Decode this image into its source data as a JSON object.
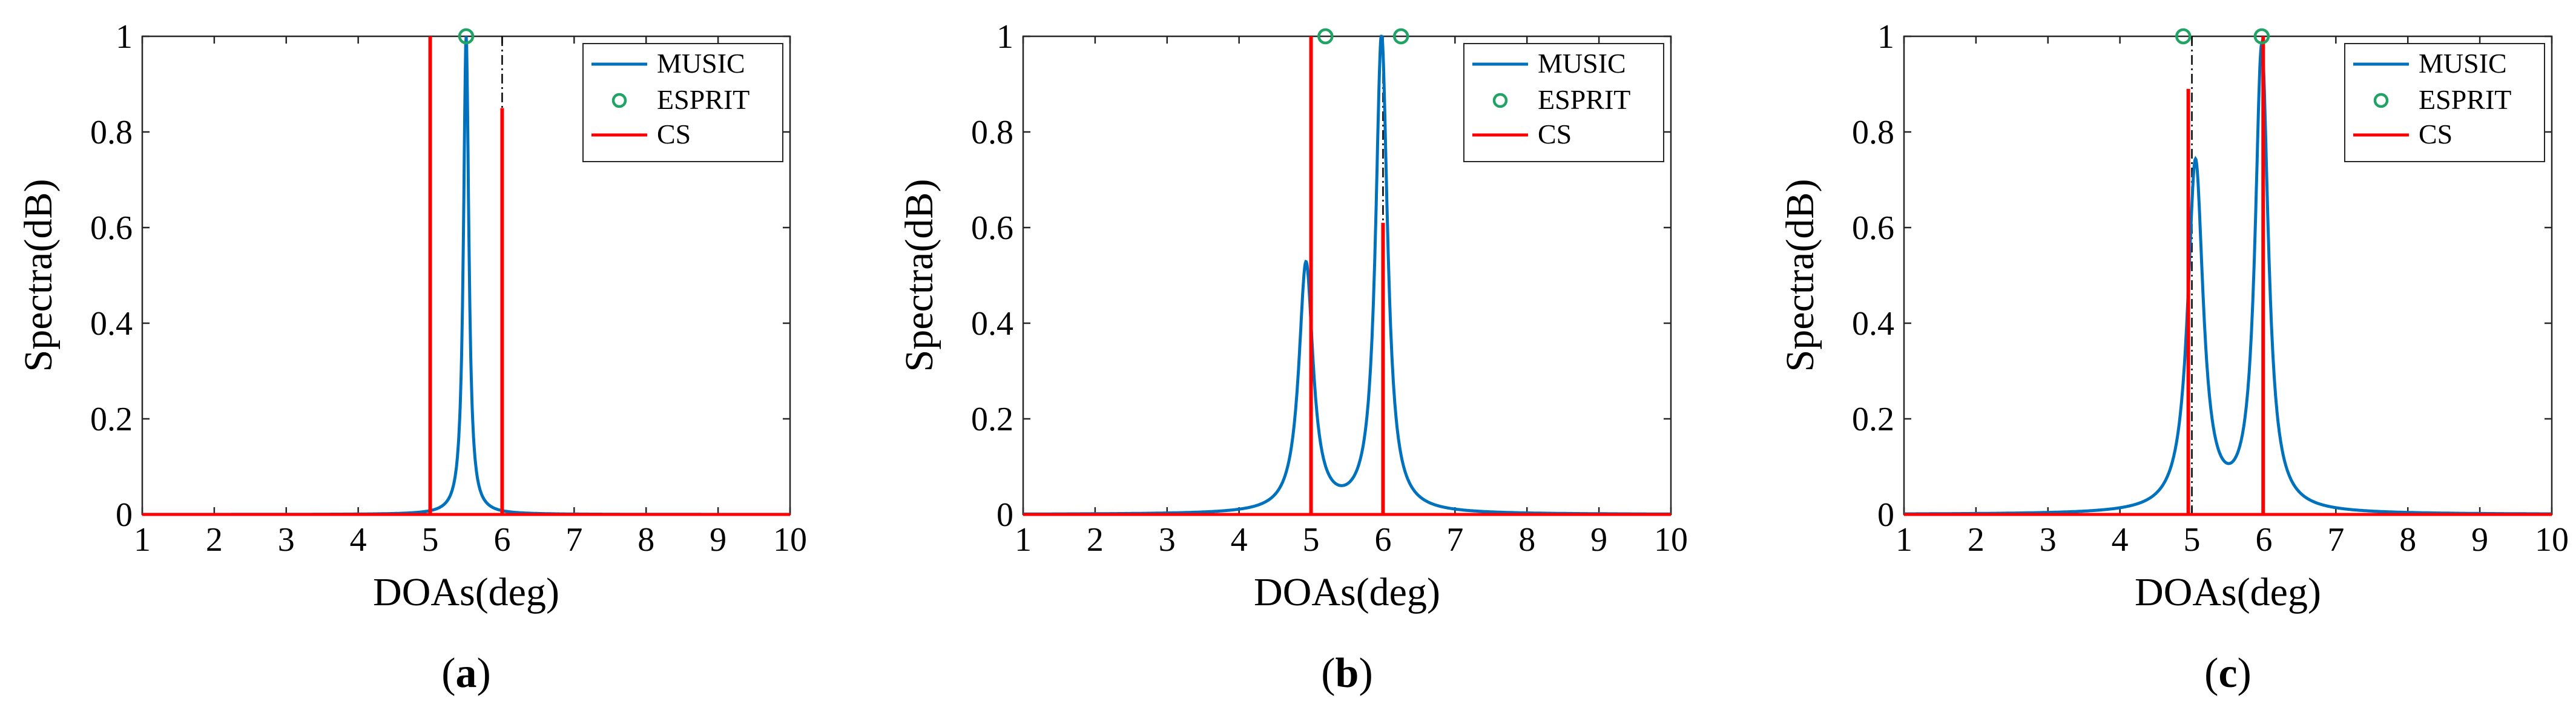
{
  "figure": {
    "panel_labels": [
      "a",
      "b",
      "c"
    ],
    "caption_open": "(",
    "caption_close": ")"
  },
  "style": {
    "music_color": "#0072BD",
    "esprit_color": "#21A366",
    "cs_color": "#FF0000",
    "true_doa_color": "#000000"
  },
  "chart_data": [
    {
      "type": "line",
      "panel": "a",
      "xlabel": "DOAs(deg)",
      "ylabel": "Spectra(dB)",
      "xlim": [
        1,
        10
      ],
      "ylim": [
        0,
        1
      ],
      "xticks": [
        "1",
        "2",
        "3",
        "4",
        "5",
        "6",
        "7",
        "8",
        "9",
        "10"
      ],
      "yticks": [
        "0",
        "0.2",
        "0.4",
        "0.6",
        "0.8",
        "1"
      ],
      "legend": [
        "MUSIC",
        "ESPRIT",
        "CS"
      ],
      "legend_position": "top-right",
      "true_doas": [
        5,
        6
      ],
      "music": {
        "name": "MUSIC",
        "peaks": [
          {
            "x": 5.5,
            "h": 1.0,
            "w": 0.045
          }
        ],
        "baseline": 0.0
      },
      "esprit": {
        "name": "ESPRIT",
        "x": [
          5.5
        ],
        "y": [
          1.0
        ]
      },
      "cs": {
        "name": "CS",
        "x": [
          5.0,
          6.0
        ],
        "y": [
          1.0,
          0.85
        ]
      }
    },
    {
      "type": "line",
      "panel": "b",
      "xlabel": "DOAs(deg)",
      "ylabel": "Spectra(dB)",
      "xlim": [
        1,
        10
      ],
      "ylim": [
        0,
        1
      ],
      "xticks": [
        "1",
        "2",
        "3",
        "4",
        "5",
        "6",
        "7",
        "8",
        "9",
        "10"
      ],
      "yticks": [
        "0",
        "0.2",
        "0.4",
        "0.6",
        "0.8",
        "1"
      ],
      "legend": [
        "MUSIC",
        "ESPRIT",
        "CS"
      ],
      "legend_position": "top-right",
      "true_doas": [
        5,
        6
      ],
      "music": {
        "name": "MUSIC",
        "peaks": [
          {
            "x": 4.93,
            "h": 0.52,
            "w": 0.12
          },
          {
            "x": 5.98,
            "h": 1.0,
            "w": 0.1
          }
        ],
        "baseline": 0.0
      },
      "esprit": {
        "name": "ESPRIT",
        "x": [
          5.2,
          6.25
        ],
        "y": [
          1.0,
          1.0
        ]
      },
      "cs": {
        "name": "CS",
        "x": [
          5.0,
          6.0
        ],
        "y": [
          1.0,
          0.61
        ]
      }
    },
    {
      "type": "line",
      "panel": "c",
      "xlabel": "DOAs(deg)",
      "ylabel": "Spectra(dB)",
      "xlim": [
        1,
        10
      ],
      "ylim": [
        0,
        1
      ],
      "xticks": [
        "1",
        "2",
        "3",
        "4",
        "5",
        "6",
        "7",
        "8",
        "9",
        "10"
      ],
      "yticks": [
        "0",
        "0.2",
        "0.4",
        "0.6",
        "0.8",
        "1"
      ],
      "legend": [
        "MUSIC",
        "ESPRIT",
        "CS"
      ],
      "legend_position": "top-right",
      "true_doas": [
        5,
        6
      ],
      "music": {
        "name": "MUSIC",
        "peaks": [
          {
            "x": 5.05,
            "h": 0.73,
            "w": 0.13
          },
          {
            "x": 5.97,
            "h": 0.97,
            "w": 0.11
          }
        ],
        "baseline": 0.0
      },
      "esprit": {
        "name": "ESPRIT",
        "x": [
          4.88,
          5.97
        ],
        "y": [
          1.0,
          1.0
        ]
      },
      "cs": {
        "name": "CS",
        "x": [
          4.95,
          5.99
        ],
        "y": [
          0.89,
          1.0
        ]
      }
    }
  ]
}
